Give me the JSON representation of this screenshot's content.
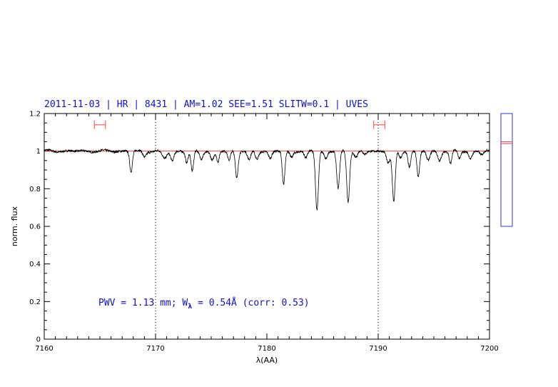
{
  "chart_data": {
    "type": "line",
    "title": "2011-11-03 | HR | 8431 | AM=1.02 SEE=1.51 SLITW=0.1 | UVES",
    "xlabel": "λ(AA)",
    "ylabel": "norm. flux",
    "xlim": [
      7160,
      7200
    ],
    "ylim": [
      0,
      1.2
    ],
    "xticks": [
      7160,
      7170,
      7180,
      7190,
      7200
    ],
    "xtick_labels": [
      "7160",
      "7170",
      "7180",
      "7190",
      "7200"
    ],
    "yticks": [
      0,
      0.2,
      0.4,
      0.6,
      0.8,
      1,
      1.2
    ],
    "ytick_labels": [
      "0",
      "0.2",
      "0.4",
      "0.6",
      "0.8",
      "1",
      "1.2"
    ],
    "annotation": {
      "prefix": "PWV = 1.13 mm; W",
      "subscript": "λ",
      "suffix": " = 0.54Å (corr: 0.53)"
    },
    "vertical_dotted_lines": [
      7170,
      7190
    ],
    "continuum_level": 1.0,
    "continuum_color": "#ff4040",
    "spectrum_color": "#000000",
    "annotation_color": "#1010d0",
    "bracket_color": "#ff4040",
    "continuum_windows": [
      [
        7164.5,
        7165.5
      ],
      [
        7189.6,
        7190.6
      ]
    ],
    "window_marker_y": 1.14,
    "side_panel": {
      "ylim": [
        0.6,
        1.2
      ],
      "line_values": [
        1.04,
        1.05
      ]
    },
    "absorption_lines": [
      {
        "x": 7167.8,
        "depth": 0.11,
        "width": 0.12
      },
      {
        "x": 7169.0,
        "depth": 0.03,
        "width": 0.15
      },
      {
        "x": 7170.8,
        "depth": 0.04,
        "width": 0.2
      },
      {
        "x": 7171.5,
        "depth": 0.05,
        "width": 0.15
      },
      {
        "x": 7172.8,
        "depth": 0.06,
        "width": 0.12
      },
      {
        "x": 7173.3,
        "depth": 0.11,
        "width": 0.12
      },
      {
        "x": 7174.1,
        "depth": 0.04,
        "width": 0.15
      },
      {
        "x": 7175.1,
        "depth": 0.05,
        "width": 0.15
      },
      {
        "x": 7175.6,
        "depth": 0.06,
        "width": 0.12
      },
      {
        "x": 7176.6,
        "depth": 0.05,
        "width": 0.12
      },
      {
        "x": 7177.3,
        "depth": 0.14,
        "width": 0.12
      },
      {
        "x": 7178.4,
        "depth": 0.05,
        "width": 0.15
      },
      {
        "x": 7179.1,
        "depth": 0.04,
        "width": 0.15
      },
      {
        "x": 7180.3,
        "depth": 0.04,
        "width": 0.15
      },
      {
        "x": 7181.5,
        "depth": 0.18,
        "width": 0.12
      },
      {
        "x": 7182.2,
        "depth": 0.03,
        "width": 0.15
      },
      {
        "x": 7183.5,
        "depth": 0.04,
        "width": 0.15
      },
      {
        "x": 7184.5,
        "depth": 0.31,
        "width": 0.13
      },
      {
        "x": 7185.3,
        "depth": 0.04,
        "width": 0.15
      },
      {
        "x": 7186.4,
        "depth": 0.2,
        "width": 0.13
      },
      {
        "x": 7187.3,
        "depth": 0.27,
        "width": 0.13
      },
      {
        "x": 7188.0,
        "depth": 0.03,
        "width": 0.15
      },
      {
        "x": 7188.8,
        "depth": 0.02,
        "width": 0.15
      },
      {
        "x": 7190.9,
        "depth": 0.06,
        "width": 0.15
      },
      {
        "x": 7191.4,
        "depth": 0.27,
        "width": 0.13
      },
      {
        "x": 7192.0,
        "depth": 0.04,
        "width": 0.15
      },
      {
        "x": 7192.8,
        "depth": 0.08,
        "width": 0.12
      },
      {
        "x": 7193.6,
        "depth": 0.14,
        "width": 0.12
      },
      {
        "x": 7194.5,
        "depth": 0.05,
        "width": 0.15
      },
      {
        "x": 7195.5,
        "depth": 0.05,
        "width": 0.15
      },
      {
        "x": 7196.5,
        "depth": 0.07,
        "width": 0.12
      },
      {
        "x": 7197.3,
        "depth": 0.04,
        "width": 0.12
      },
      {
        "x": 7198.3,
        "depth": 0.04,
        "width": 0.15
      },
      {
        "x": 7199.3,
        "depth": 0.02,
        "width": 0.15
      }
    ]
  }
}
